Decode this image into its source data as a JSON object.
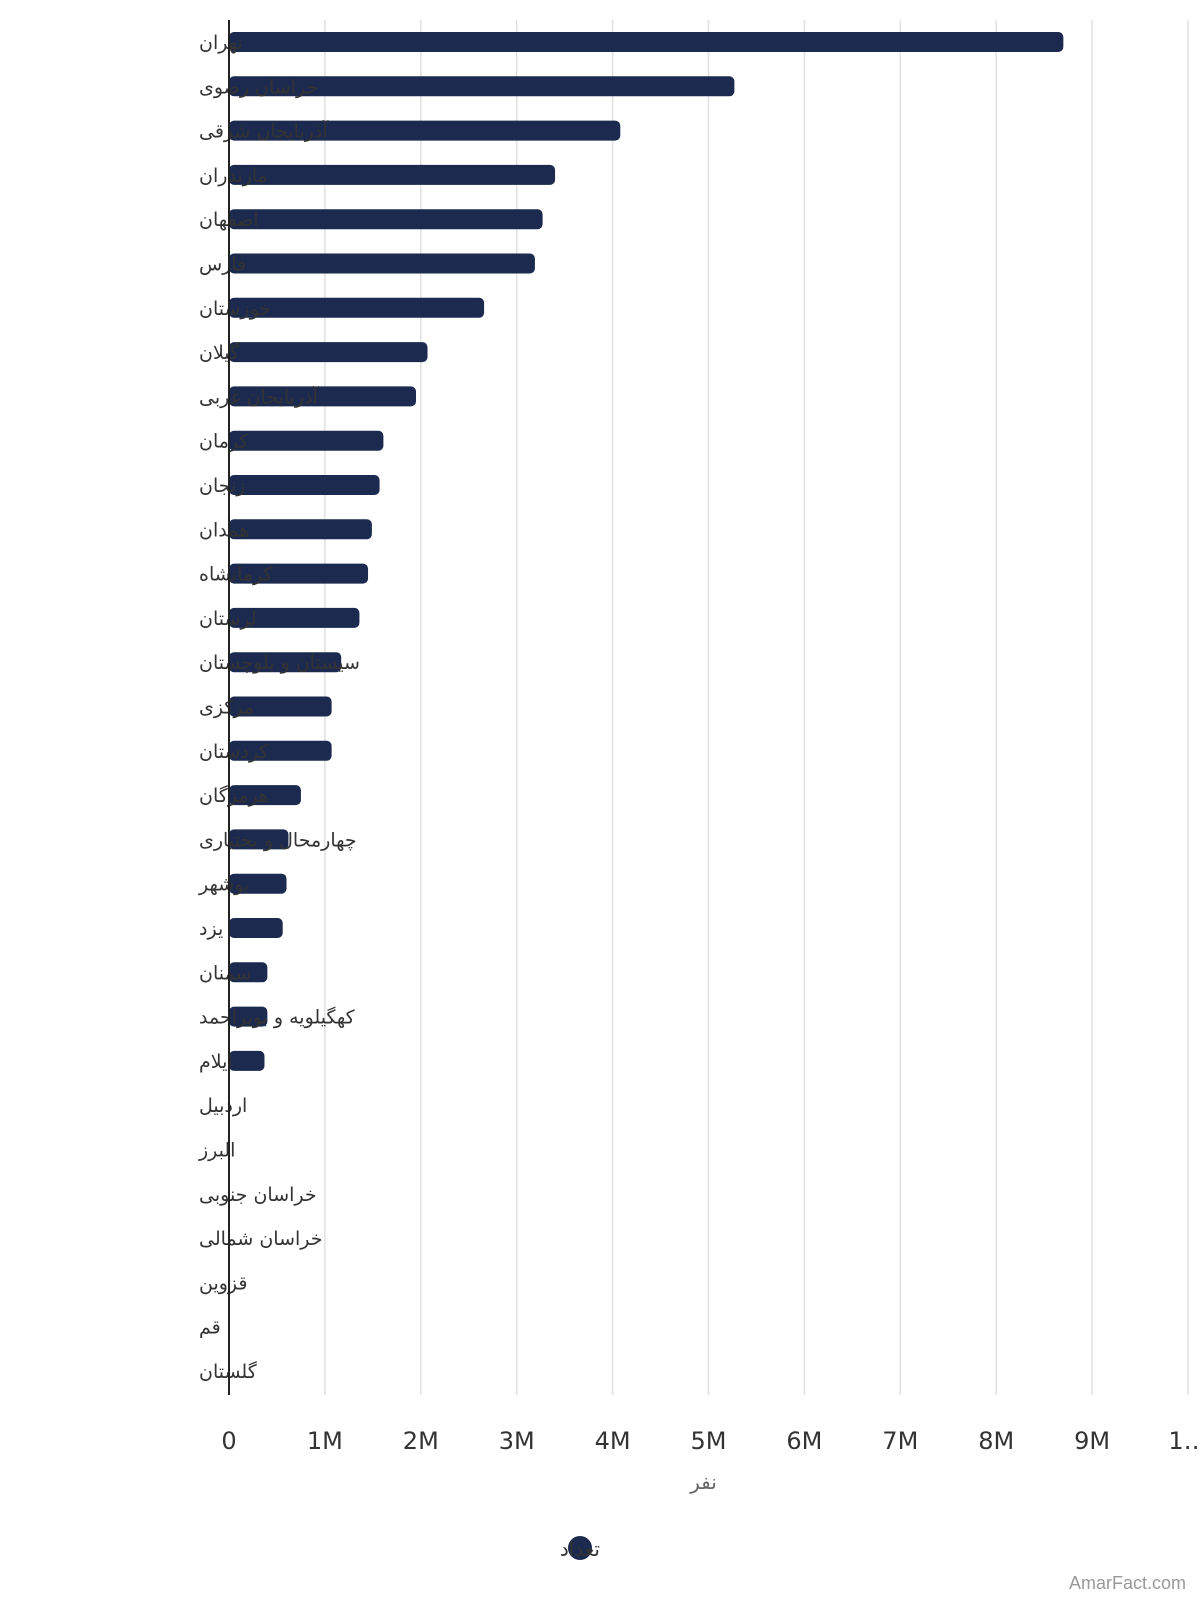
{
  "chart_data": {
    "type": "bar",
    "orientation": "horizontal",
    "categories": [
      "تهران",
      "خراسان رضوی",
      "آذربایجان شرقی",
      "مازندران",
      "اصفهان",
      "فارس",
      "خوزستان",
      "گیلان",
      "آذربایجان غربی",
      "کرمان",
      "زنجان",
      "همدان",
      "کرمانشاه",
      "لرستان",
      "سیستان و بلوچستان",
      "مرکزی",
      "کردستان",
      "هرمزگان",
      "چهارمحال و بختیاری",
      "بوشهر",
      "یزد",
      "سمنان",
      "کهگیلویه و بویراحمد",
      "ایلام",
      "اردبیل",
      "البرز",
      "خراسان جنوبی",
      "خراسان شمالی",
      "قزوین",
      "قم",
      "گلستان"
    ],
    "series": [
      {
        "name": "تعداد",
        "values": [
          8700000,
          5270000,
          4080000,
          3400000,
          3270000,
          3190000,
          2660000,
          2070000,
          1950000,
          1610000,
          1570000,
          1490000,
          1450000,
          1360000,
          1170000,
          1070000,
          1070000,
          750000,
          620000,
          600000,
          560000,
          400000,
          400000,
          370000,
          0,
          0,
          0,
          0,
          0,
          0,
          0
        ]
      }
    ],
    "xlim": [
      0,
      10000000
    ],
    "xticks": [
      "0",
      "1M",
      "2M",
      "3M",
      "4M",
      "5M",
      "6M",
      "7M",
      "8M",
      "9M",
      "1…"
    ],
    "xlabel": "نفر",
    "grid": true,
    "legend_position": "bottom"
  },
  "legend": {
    "label": "تعداد"
  },
  "colors": {
    "bar": "#1b2a4e",
    "grid": "#e0e0e0",
    "axis": "#222222"
  },
  "credit": "AmarFact.com"
}
